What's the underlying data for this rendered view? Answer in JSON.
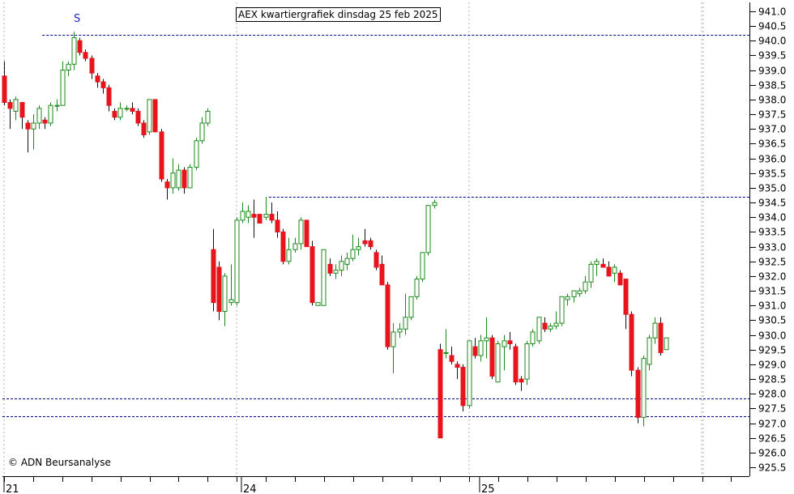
{
  "title": "AEX kwartiergrafiek dinsdag 25 feb 2025",
  "credit": "© ADN Beursanalyse",
  "marker_label": "S",
  "colors": {
    "up": "#1a8a1a",
    "down": "#e8141c",
    "guide": "#00008b",
    "grid": "#b0b0b0",
    "axis": "#000000"
  },
  "chart_data": {
    "type": "candlestick",
    "ylim": [
      925.2,
      941.3
    ],
    "yticks": [
      925.5,
      926.0,
      926.5,
      927.0,
      927.5,
      928.0,
      928.5,
      929.0,
      929.5,
      930.0,
      930.5,
      931.0,
      931.5,
      932.0,
      932.5,
      933.0,
      933.5,
      934.0,
      934.5,
      935.0,
      935.5,
      936.0,
      936.5,
      937.0,
      937.5,
      938.0,
      938.5,
      939.0,
      939.5,
      940.0,
      940.5,
      941.0
    ],
    "ytick_labels": [
      "925.5",
      "926.0",
      "926.5",
      "927.0",
      "927.5",
      "928.0",
      "928.5",
      "929.0",
      "929.5",
      "930.0",
      "930.5",
      "931.0",
      "931.5",
      "932.0",
      "932.5",
      "933.0",
      "933.5",
      "934.0",
      "934.5",
      "935.0",
      "935.5",
      "936.0",
      "936.5",
      "937.0",
      "937.5",
      "938.0",
      "938.5",
      "939.0",
      "939.5",
      "940.0",
      "940.5",
      "941.0"
    ],
    "x_day_labels": [
      {
        "label": "21",
        "index": 0
      },
      {
        "label": "24",
        "index": 41
      },
      {
        "label": "25",
        "index": 82
      }
    ],
    "horizontal_levels": [
      {
        "value": 940.2,
        "from_index": 7
      },
      {
        "value": 934.7,
        "from_index": 46
      },
      {
        "value": 927.85,
        "from_index": 0
      },
      {
        "value": 927.25,
        "from_index": 0
      }
    ],
    "candles": [
      [
        938.8,
        939.3,
        937.8,
        937.9
      ],
      [
        937.9,
        938.0,
        937.0,
        937.7
      ],
      [
        937.6,
        938.1,
        937.3,
        938.0
      ],
      [
        937.9,
        937.9,
        937.0,
        937.4
      ],
      [
        937.2,
        937.3,
        936.2,
        937.0
      ],
      [
        937.0,
        937.5,
        936.3,
        937.2
      ],
      [
        937.2,
        937.8,
        937.0,
        937.7
      ],
      [
        937.3,
        937.4,
        937.0,
        937.2
      ],
      [
        937.2,
        937.9,
        937.1,
        937.8
      ],
      [
        937.8,
        938.0,
        937.6,
        937.8
      ],
      [
        937.8,
        939.3,
        937.8,
        939.0
      ],
      [
        939.0,
        939.3,
        938.8,
        939.2
      ],
      [
        939.2,
        940.3,
        939.0,
        940.1
      ],
      [
        940.0,
        940.1,
        939.5,
        939.6
      ],
      [
        939.6,
        939.7,
        939.3,
        939.4
      ],
      [
        939.4,
        939.5,
        938.7,
        938.9
      ],
      [
        938.8,
        938.9,
        938.4,
        938.6
      ],
      [
        938.6,
        938.7,
        938.2,
        938.4
      ],
      [
        938.4,
        938.5,
        937.6,
        937.8
      ],
      [
        937.6,
        937.7,
        937.3,
        937.4
      ],
      [
        937.4,
        937.9,
        937.3,
        937.7
      ],
      [
        937.7,
        937.8,
        937.6,
        937.7
      ],
      [
        937.7,
        937.9,
        937.5,
        937.6
      ],
      [
        937.6,
        937.7,
        937.1,
        937.2
      ],
      [
        937.2,
        937.3,
        936.7,
        936.8
      ],
      [
        936.9,
        938.0,
        936.8,
        938.0
      ],
      [
        938.0,
        938.0,
        936.9,
        936.9
      ],
      [
        936.9,
        937.0,
        935.2,
        935.3
      ],
      [
        935.2,
        935.3,
        934.6,
        935.0
      ],
      [
        935.0,
        936.0,
        934.8,
        935.5
      ],
      [
        935.0,
        935.8,
        934.9,
        935.6
      ],
      [
        935.6,
        935.7,
        934.8,
        935.0
      ],
      [
        935.0,
        935.8,
        935.0,
        935.7
      ],
      [
        935.7,
        936.7,
        935.6,
        936.6
      ],
      [
        936.6,
        937.4,
        936.5,
        937.2
      ],
      [
        937.2,
        937.7,
        937.1,
        937.6
      ],
      [
        932.9,
        933.6,
        930.8,
        931.1
      ],
      [
        932.3,
        932.5,
        930.5,
        930.8
      ],
      [
        930.8,
        932.1,
        930.3,
        932.0
      ],
      [
        931.1,
        932.4,
        931.0,
        931.2
      ],
      [
        931.1,
        934.0,
        931.0,
        933.9
      ],
      [
        933.9,
        934.5,
        933.8,
        934.2
      ],
      [
        934.0,
        934.4,
        933.8,
        934.2
      ],
      [
        934.1,
        934.6,
        933.3,
        934.0
      ],
      [
        934.1,
        934.1,
        933.8,
        933.8
      ],
      [
        934.0,
        934.7,
        933.9,
        934.1
      ],
      [
        934.1,
        934.5,
        933.8,
        933.9
      ],
      [
        933.9,
        934.2,
        933.3,
        933.5
      ],
      [
        933.5,
        933.6,
        932.4,
        932.5
      ],
      [
        932.5,
        933.3,
        932.4,
        932.9
      ],
      [
        932.9,
        933.3,
        932.8,
        933.1
      ],
      [
        933.1,
        934.0,
        932.9,
        933.9
      ],
      [
        933.9,
        933.9,
        933.0,
        933.0
      ],
      [
        933.0,
        933.2,
        931.0,
        931.1
      ],
      [
        931.0,
        931.1,
        931.0,
        931.1
      ],
      [
        931.0,
        932.9,
        931.0,
        932.9
      ],
      [
        932.4,
        932.6,
        932.0,
        932.1
      ],
      [
        932.1,
        932.4,
        931.9,
        932.2
      ],
      [
        932.2,
        932.7,
        932.0,
        932.5
      ],
      [
        932.4,
        932.8,
        932.2,
        932.6
      ],
      [
        932.6,
        933.4,
        932.5,
        932.9
      ],
      [
        932.9,
        933.3,
        932.7,
        933.0
      ],
      [
        933.2,
        933.6,
        933.0,
        933.1
      ],
      [
        933.2,
        933.3,
        932.9,
        933.0
      ],
      [
        932.8,
        932.9,
        932.2,
        932.3
      ],
      [
        932.4,
        932.7,
        931.7,
        931.7
      ],
      [
        931.7,
        931.8,
        929.5,
        929.6
      ],
      [
        929.6,
        930.4,
        928.7,
        930.1
      ],
      [
        930.1,
        930.4,
        929.9,
        930.2
      ],
      [
        930.2,
        931.4,
        930.0,
        930.6
      ],
      [
        930.6,
        931.3,
        930.5,
        931.3
      ],
      [
        931.3,
        932.0,
        931.2,
        931.9
      ],
      [
        931.9,
        932.8,
        931.8,
        932.8
      ],
      [
        932.8,
        934.4,
        932.7,
        934.4
      ],
      [
        934.4,
        934.6,
        934.3,
        934.5
      ],
      [
        929.5,
        929.7,
        926.5,
        926.5
      ],
      [
        929.4,
        930.2,
        929.2,
        929.4
      ],
      [
        929.3,
        929.6,
        929.0,
        929.1
      ],
      [
        929.0,
        929.1,
        928.5,
        928.9
      ],
      [
        928.9,
        929.0,
        927.4,
        927.6
      ],
      [
        927.6,
        929.8,
        927.5,
        929.8
      ],
      [
        929.6,
        929.9,
        929.2,
        929.3
      ],
      [
        929.3,
        930.0,
        929.1,
        929.8
      ],
      [
        929.8,
        930.6,
        929.2,
        929.9
      ],
      [
        929.9,
        930.0,
        928.5,
        928.6
      ],
      [
        928.4,
        929.8,
        928.4,
        929.7
      ],
      [
        929.6,
        930.0,
        928.8,
        929.8
      ],
      [
        929.8,
        930.1,
        929.5,
        929.7
      ],
      [
        929.6,
        929.7,
        928.3,
        928.4
      ],
      [
        928.5,
        928.6,
        928.1,
        928.4
      ],
      [
        928.5,
        929.8,
        928.3,
        929.7
      ],
      [
        929.7,
        930.2,
        929.6,
        930.1
      ],
      [
        929.8,
        930.6,
        929.7,
        930.6
      ],
      [
        930.4,
        930.6,
        930.1,
        930.2
      ],
      [
        930.2,
        930.4,
        930.1,
        930.3
      ],
      [
        930.3,
        930.8,
        930.2,
        930.4
      ],
      [
        930.4,
        931.3,
        930.3,
        931.3
      ],
      [
        931.2,
        931.4,
        931.0,
        931.3
      ],
      [
        931.3,
        931.5,
        931.1,
        931.5
      ],
      [
        931.4,
        931.6,
        931.3,
        931.5
      ],
      [
        931.5,
        932.0,
        931.4,
        931.8
      ],
      [
        931.8,
        932.5,
        931.6,
        932.4
      ],
      [
        932.4,
        932.6,
        932.0,
        932.5
      ],
      [
        932.4,
        932.6,
        932.3,
        932.3
      ],
      [
        932.3,
        932.5,
        932.0,
        932.0
      ],
      [
        932.1,
        932.4,
        931.8,
        932.3
      ],
      [
        932.1,
        932.2,
        931.7,
        931.7
      ],
      [
        931.9,
        931.9,
        930.2,
        930.7
      ],
      [
        930.7,
        930.8,
        928.6,
        928.8
      ],
      [
        928.8,
        928.9,
        927.0,
        927.2
      ],
      [
        927.2,
        929.3,
        926.9,
        929.2
      ],
      [
        929.0,
        930.0,
        928.8,
        929.9
      ],
      [
        929.9,
        930.6,
        929.7,
        930.4
      ],
      [
        930.4,
        930.6,
        929.3,
        929.4
      ],
      [
        929.5,
        929.9,
        929.5,
        929.9
      ]
    ]
  }
}
